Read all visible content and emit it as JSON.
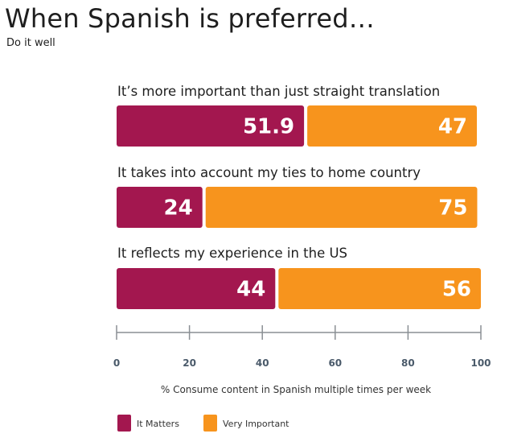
{
  "chart_data": {
    "type": "bar",
    "orientation": "horizontal",
    "stacked": true,
    "title": "When Spanish is preferred…",
    "subtitle": "Do it well",
    "categories": [
      "It’s more important than just straight translation",
      "It takes into account my ties to home country",
      "It reflects my experience in the US"
    ],
    "series": [
      {
        "name": "It Matters",
        "values": [
          51.9,
          24,
          44
        ],
        "value_labels": [
          "51.9",
          "24",
          "44"
        ],
        "color": "#a3174f"
      },
      {
        "name": "Very Important",
        "values": [
          47,
          75,
          56
        ],
        "value_labels": [
          "47",
          "75",
          "56"
        ],
        "color": "#f7941d"
      }
    ],
    "xlabel": "% Consume content in Spanish multiple times per week",
    "xlim": [
      0,
      100
    ],
    "xticks": [
      0,
      20,
      40,
      60,
      80,
      100
    ],
    "grid": false,
    "legend": "bottom-left"
  }
}
